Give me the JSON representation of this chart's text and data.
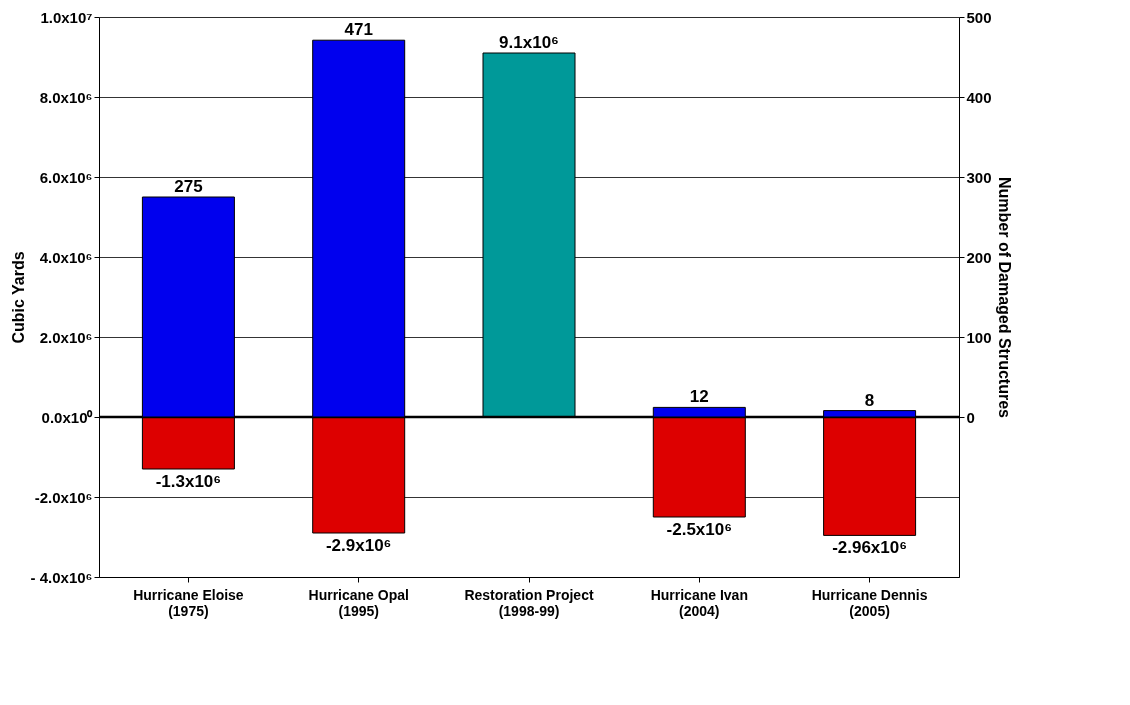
{
  "chart_data": {
    "type": "bar",
    "categories": [
      "Hurricane Eloise\n(1975)",
      "Hurricane Opal\n(1995)",
      "Restoration Project\n(1998-99)",
      "Hurricane Ivan\n(2004)",
      "Hurricane Dennis\n(2005)"
    ],
    "ylabel": "Cubic Yards",
    "y2label": "Number of Damaged Structures",
    "ylim": [
      -4000000,
      10000000
    ],
    "yticks": [
      {
        "value": -4000000,
        "label": "- 4.0x10⁶"
      },
      {
        "value": -2000000,
        "label": "-2.0x10⁶"
      },
      {
        "value": 0,
        "label": "0.0x10⁰"
      },
      {
        "value": 2000000,
        "label": "2.0x10⁶"
      },
      {
        "value": 4000000,
        "label": "4.0x10⁶"
      },
      {
        "value": 6000000,
        "label": "6.0x10⁶"
      },
      {
        "value": 8000000,
        "label": "8.0x10⁶"
      },
      {
        "value": 10000000,
        "label": "1.0x10⁷"
      }
    ],
    "y2lim": [
      -200,
      500
    ],
    "y2ticks": [
      0,
      100,
      200,
      300,
      400,
      500
    ],
    "series": [
      {
        "color": "#dd0000",
        "values": [
          -1300000,
          -2900000,
          null,
          -2500000,
          -2960000
        ],
        "value_labels": [
          "-1.3x10⁶",
          "-2.9x10⁶",
          null,
          "-2.5x10⁶",
          "-2.96x10⁶"
        ]
      },
      {
        "color": "#009999",
        "values": [
          null,
          null,
          9100000,
          null,
          null
        ],
        "value_labels": [
          null,
          null,
          "9.1x10⁶",
          null,
          null
        ]
      },
      {
        "color": "#0000ee",
        "axis": "y2",
        "values": [
          275,
          471,
          null,
          12,
          8
        ],
        "value_labels": [
          "275",
          "471",
          null,
          "12",
          "8"
        ]
      }
    ],
    "ref_lines": [
      {
        "axis": "y",
        "value": 0,
        "color": "#000000"
      }
    ],
    "grid": "y",
    "stacked": true
  }
}
